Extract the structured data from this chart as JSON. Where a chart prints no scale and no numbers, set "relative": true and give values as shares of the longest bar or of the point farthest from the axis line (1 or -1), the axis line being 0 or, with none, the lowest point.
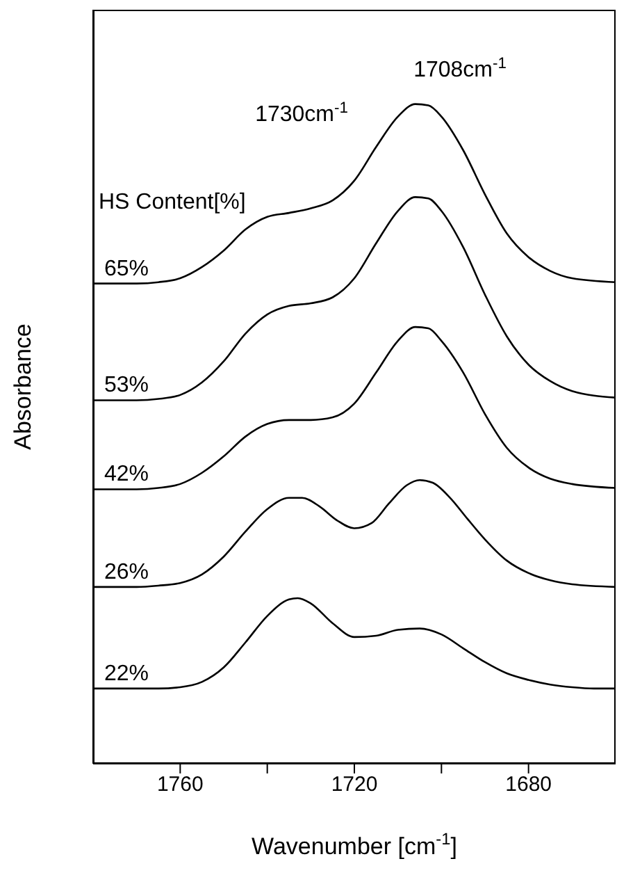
{
  "chart_data": {
    "type": "line",
    "relative": true,
    "xlabel": "Wavenumber [cm$^{-1}$]",
    "ylabel": "Absorbance",
    "legend_title": "HS Content[%]",
    "xlim": [
      1780,
      1660
    ],
    "xticks": [
      1760,
      {
        "value": 1740,
        "label": null
      },
      1720,
      {
        "value": 1700,
        "label": null
      },
      1680
    ],
    "line_style": "solid",
    "annotations": [
      "1730cm$^{-1}$",
      "1708cm$^{-1}$"
    ],
    "series": [
      {
        "name": "22%",
        "color": "#000000",
        "x": [
          1780,
          1775,
          1770,
          1765,
          1760,
          1755,
          1750,
          1745,
          1740,
          1735,
          1733,
          1730,
          1725,
          1720,
          1715,
          1710,
          1705,
          1700,
          1695,
          1690,
          1685,
          1680,
          1675,
          1670,
          1665,
          1660
        ],
        "values": [
          0.114,
          0.114,
          0.114,
          0.114,
          0.116,
          0.124,
          0.146,
          0.184,
          0.224,
          0.249,
          0.251,
          0.243,
          0.213,
          0.192,
          0.194,
          0.203,
          0.205,
          0.196,
          0.175,
          0.154,
          0.137,
          0.127,
          0.12,
          0.116,
          0.114,
          0.114
        ]
      },
      {
        "name": "26%",
        "color": "#000000",
        "x": [
          1780,
          1770,
          1765,
          1760,
          1755,
          1750,
          1745,
          1740,
          1735,
          1732,
          1728,
          1724,
          1720,
          1716,
          1712,
          1708,
          1705,
          1702,
          1698,
          1694,
          1690,
          1685,
          1680,
          1675,
          1670,
          1660
        ],
        "values": [
          0.268,
          0.268,
          0.27,
          0.274,
          0.287,
          0.314,
          0.352,
          0.386,
          0.403,
          0.403,
          0.39,
          0.369,
          0.357,
          0.365,
          0.395,
          0.422,
          0.43,
          0.426,
          0.403,
          0.371,
          0.34,
          0.308,
          0.289,
          0.278,
          0.272,
          0.268
        ]
      },
      {
        "name": "42%",
        "color": "#000000",
        "x": [
          1780,
          1770,
          1765,
          1760,
          1755,
          1750,
          1745,
          1740,
          1735,
          1730,
          1725,
          1720,
          1715,
          1710,
          1706,
          1703,
          1700,
          1695,
          1690,
          1685,
          1680,
          1675,
          1670,
          1660
        ],
        "values": [
          0.416,
          0.416,
          0.418,
          0.424,
          0.441,
          0.466,
          0.496,
          0.515,
          0.521,
          0.521,
          0.525,
          0.546,
          0.593,
          0.641,
          0.662,
          0.66,
          0.641,
          0.593,
          0.53,
          0.479,
          0.449,
          0.432,
          0.424,
          0.418
        ]
      },
      {
        "name": "53%",
        "color": "#000000",
        "x": [
          1780,
          1770,
          1765,
          1760,
          1755,
          1750,
          1745,
          1740,
          1735,
          1730,
          1725,
          1720,
          1715,
          1710,
          1706,
          1703,
          1700,
          1695,
          1690,
          1685,
          1680,
          1675,
          1670,
          1660
        ],
        "values": [
          0.551,
          0.551,
          0.553,
          0.559,
          0.578,
          0.61,
          0.652,
          0.681,
          0.694,
          0.698,
          0.707,
          0.736,
          0.789,
          0.838,
          0.859,
          0.857,
          0.838,
          0.783,
          0.711,
          0.648,
          0.605,
          0.58,
          0.565,
          0.555
        ]
      },
      {
        "name": "65%",
        "color": "#000000",
        "x": [
          1780,
          1770,
          1765,
          1760,
          1755,
          1750,
          1745,
          1740,
          1735,
          1730,
          1725,
          1720,
          1715,
          1710,
          1706,
          1703,
          1700,
          1695,
          1690,
          1685,
          1680,
          1675,
          1670,
          1660
        ],
        "values": [
          0.728,
          0.728,
          0.73,
          0.736,
          0.753,
          0.778,
          0.81,
          0.829,
          0.835,
          0.842,
          0.854,
          0.884,
          0.935,
          0.981,
          1,
          0.998,
          0.981,
          0.93,
          0.863,
          0.804,
          0.768,
          0.747,
          0.736,
          0.73
        ]
      }
    ]
  }
}
